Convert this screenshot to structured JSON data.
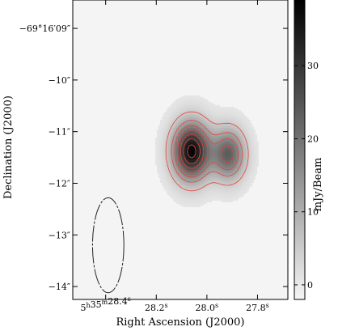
{
  "chart_data": {
    "type": "heatmap",
    "title": "",
    "xlabel": "Right Ascension (J2000)",
    "ylabel": "Declination (J2000)",
    "colorbar_label": "mJy/Beam",
    "x_ticks": [
      {
        "value": 28.4,
        "label": "5h35m28.4s",
        "main": "5",
        "parts": [
          {
            "t": "5",
            "sup": "h"
          },
          {
            "t": "35",
            "sup": "m"
          },
          {
            "t": "28.4",
            "sup": "s"
          }
        ]
      },
      {
        "value": 28.2,
        "label": "28.2s",
        "main": "28.2",
        "sup": "s"
      },
      {
        "value": 28.0,
        "label": "28.0s",
        "main": "28.0",
        "sup": "s"
      },
      {
        "value": 27.8,
        "label": "27.8s",
        "main": "27.8",
        "sup": "s"
      }
    ],
    "y_ticks": [
      {
        "value": -9,
        "label": "−69°16′09″"
      },
      {
        "value": -10,
        "label": "−10″"
      },
      {
        "value": -11,
        "label": "−11″"
      },
      {
        "value": -12,
        "label": "−12″"
      },
      {
        "value": -13,
        "label": "−13″"
      },
      {
        "value": -14,
        "label": "−14″"
      }
    ],
    "colorbar_ticks": [
      {
        "value": 0,
        "label": "0"
      },
      {
        "value": 10,
        "label": "10"
      },
      {
        "value": 20,
        "label": "20"
      },
      {
        "value": 30,
        "label": "30"
      }
    ],
    "xlim": [
      28.53,
      27.68
    ],
    "ylim": [
      -14.25,
      -8.45
    ],
    "colorbar_range": [
      -2,
      39
    ],
    "colormap": "grayscale (white = low, black = high)",
    "contour_color": "#e8433a",
    "sources": [
      {
        "ra": 28.061,
        "dec": -11.38,
        "peak_mJy": 38,
        "sigma_ra": 0.05,
        "sigma_dec": 0.38
      },
      {
        "ra": 27.915,
        "dec": -11.44,
        "peak_mJy": 23,
        "sigma_ra": 0.045,
        "sigma_dec": 0.34
      }
    ],
    "contour_levels_mJy": [
      5,
      11,
      16,
      21,
      26,
      31,
      36
    ],
    "beam": {
      "ra": 28.39,
      "dec": -13.2,
      "a_ra": 0.062,
      "b_dec": 0.92,
      "style": "dashed"
    }
  }
}
